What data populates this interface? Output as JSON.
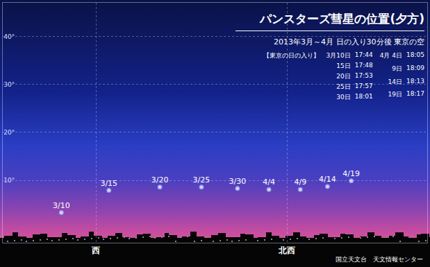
{
  "chart_data": {
    "type": "scatter",
    "title": "パンスターズ彗星の位置(夕方)",
    "subtitle": "2013年3月～4月 日の入り30分後 東京の空",
    "sunset_table": {
      "title": "【東京の日の入り】",
      "rows": [
        {
          "date": "3月10日",
          "time": "17:44"
        },
        {
          "date": "15日",
          "time": "17:48"
        },
        {
          "date": "20日",
          "time": "17:53"
        },
        {
          "date": "25日",
          "time": "17:57"
        },
        {
          "date": "30日",
          "time": "18:01"
        },
        {
          "date": "4月 4日",
          "time": "18:05"
        },
        {
          "date": "9日",
          "time": "18:09"
        },
        {
          "date": "14日",
          "time": "18:13"
        },
        {
          "date": "19日",
          "time": "18:17"
        }
      ]
    },
    "credit": "国立天文台　天文情報センター",
    "x": [
      261.8,
      273.0,
      285.0,
      294.8,
      303.3,
      310.7,
      318.1,
      324.5,
      330.1
    ],
    "values": [
      3.3,
      7.9,
      8.6,
      8.6,
      8.3,
      8.1,
      8.1,
      8.7,
      9.9
    ],
    "labels": [
      "3/10",
      "3/15",
      "3/20",
      "3/25",
      "3/30",
      "4/4",
      "4/9",
      "4/14",
      "4/19"
    ],
    "color": "#cfdcff",
    "marker": "circle",
    "xlim": [
      248,
      348
    ],
    "ylim": [
      -3,
      47
    ],
    "xticks": [
      {
        "value": 270,
        "label": "西"
      },
      {
        "value": 315,
        "label": "北西"
      }
    ],
    "yticks": [
      {
        "value": 10,
        "label": "10°"
      },
      {
        "value": 20,
        "label": "20°"
      },
      {
        "value": 30,
        "label": "30°"
      },
      {
        "value": 40,
        "label": "40°"
      }
    ],
    "grid": true
  }
}
